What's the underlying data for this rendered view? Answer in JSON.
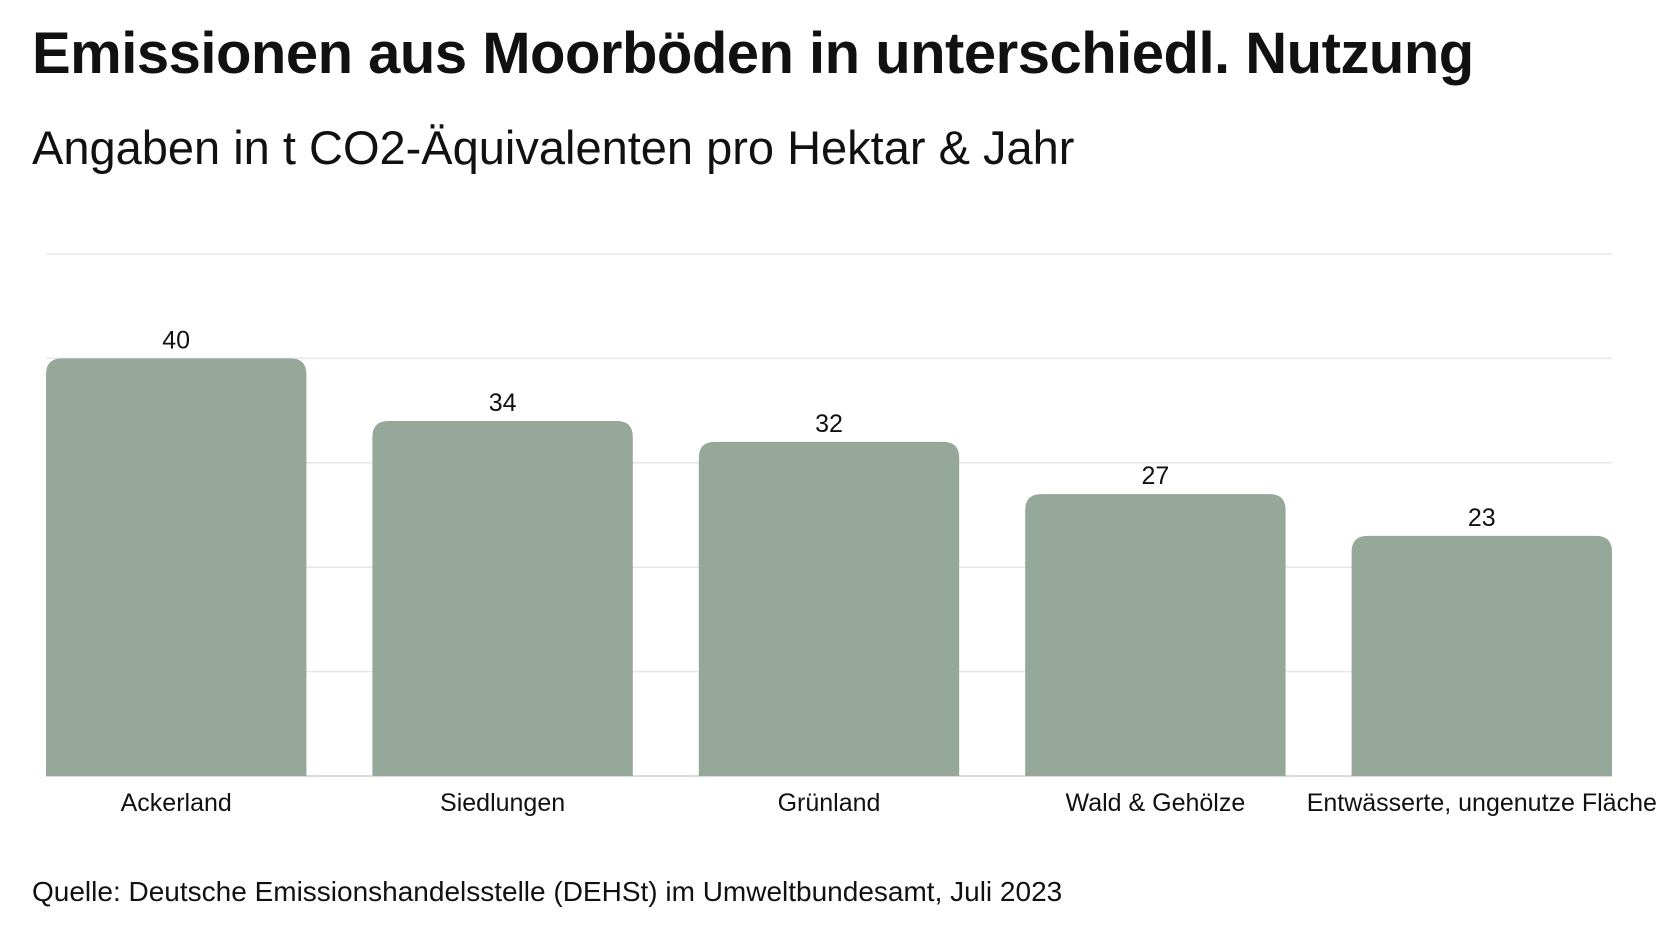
{
  "title": "Emissionen aus Moorböden in unterschiedl. Nutzung",
  "subtitle": "Angaben in t CO2-Äquivalenten pro Hektar & Jahr",
  "source": "Quelle: Deutsche Emissionshandelsstelle (DEHSt) im Umweltbundesamt, Juli 2023",
  "colors": {
    "bar": "#95a89a",
    "grid": "#e6e6e6",
    "axis": "#cfcfcf",
    "text": "#111111"
  },
  "chart_data": {
    "type": "bar",
    "title": "Emissionen aus Moorböden in unterschiedl. Nutzung",
    "subtitle": "Angaben in t CO2-Äquivalenten pro Hektar & Jahr",
    "categories": [
      "Ackerland",
      "Siedlungen",
      "Grünland",
      "Wald & Gehölze",
      "Entwässerte, ungenutze Fläche"
    ],
    "values": [
      40,
      34,
      32,
      27,
      23
    ],
    "ylim": [
      0,
      50
    ],
    "gridlines": [
      10,
      20,
      30,
      40,
      50
    ],
    "grid": true,
    "data_labels": true,
    "y_tick_labels_shown": false
  }
}
